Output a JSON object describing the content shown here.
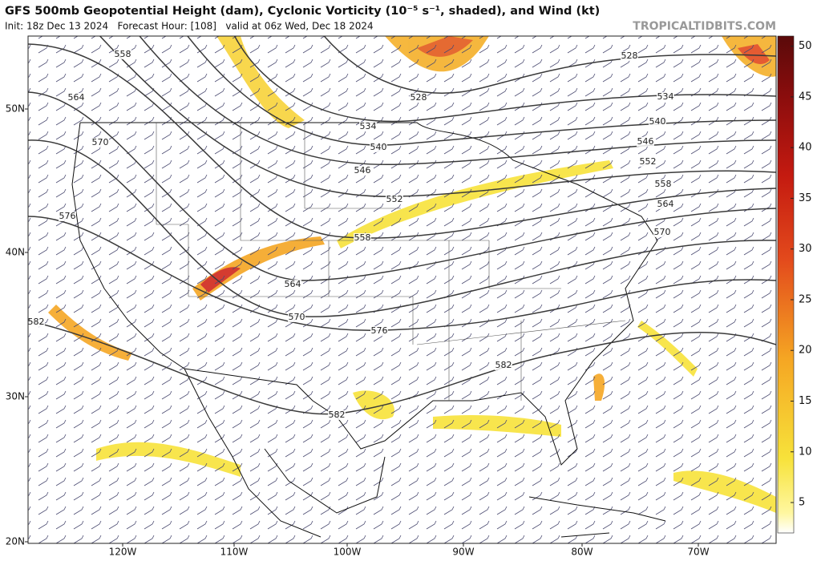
{
  "header": {
    "title": "GFS 500mb Geopotential Height (dam), Cyclonic Vorticity (10⁻⁵ s⁻¹, shaded), and Wind (kt)",
    "subtitle": "Init: 18z Dec 13 2024   Forecast Hour: [108]   valid at 06z Wed, Dec 18 2024",
    "source": "TROPICALTIDBITS.COM"
  },
  "map": {
    "lat_labels": [
      "50N",
      "40N",
      "30N",
      "20N"
    ],
    "lon_labels": [
      "120W",
      "110W",
      "100W",
      "90W",
      "80W",
      "70W"
    ],
    "contours": [
      528,
      534,
      540,
      546,
      552,
      558,
      564,
      570,
      576,
      582
    ]
  },
  "colorbar": {
    "ticks": [
      5,
      10,
      15,
      20,
      25,
      30,
      35,
      40,
      45,
      50
    ],
    "lim": [
      2,
      51
    ]
  }
}
